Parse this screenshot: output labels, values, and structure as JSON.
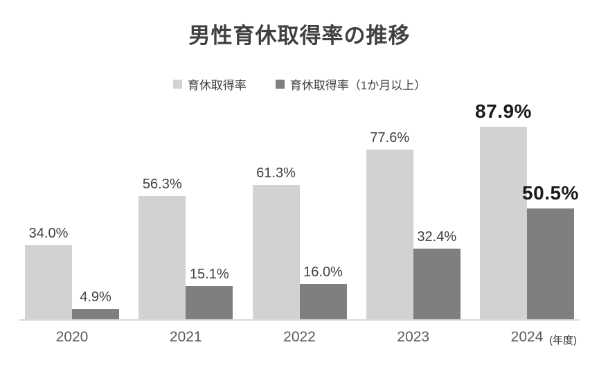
{
  "chart_data": {
    "type": "bar",
    "title": "男性育休取得率の推移",
    "categories": [
      "2020",
      "2021",
      "2022",
      "2023",
      "2024"
    ],
    "series": [
      {
        "name": "育休取得率",
        "color": "#d2d2d2",
        "values": [
          34.0,
          56.3,
          61.3,
          77.6,
          87.9
        ],
        "labels": [
          "34.0%",
          "56.3%",
          "61.3%",
          "77.6%",
          "87.9%"
        ]
      },
      {
        "name": "育休取得率（1か月以上）",
        "color": "#7f7f7f",
        "values": [
          4.9,
          15.1,
          16.0,
          32.4,
          50.5
        ],
        "labels": [
          "4.9%",
          "15.1%",
          "16.0%",
          "32.4%",
          "50.5%"
        ]
      }
    ],
    "x_axis_unit": "(年度)",
    "emphasized_category": "2024",
    "ylim": [
      0,
      100
    ],
    "grid": false,
    "legend_position": "top",
    "colors": {
      "title_text": "#404040",
      "label_text": "#404040",
      "emphasized_label_text": "#1a1a1a",
      "axis_text": "#595959",
      "axis_line": "#d9d9d9"
    }
  }
}
